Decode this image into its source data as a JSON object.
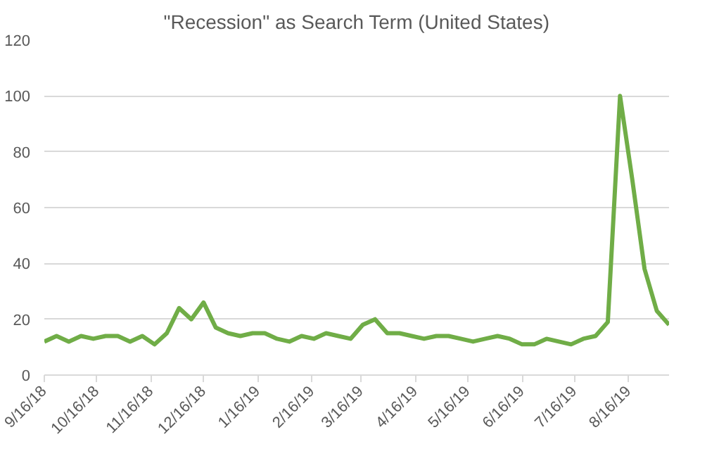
{
  "chart_data": {
    "type": "line",
    "title": "\"Recession\" as Search Term (United States)",
    "x": [
      "2018-09-16",
      "2018-09-23",
      "2018-09-30",
      "2018-10-07",
      "2018-10-14",
      "2018-10-21",
      "2018-10-28",
      "2018-11-04",
      "2018-11-11",
      "2018-11-18",
      "2018-11-25",
      "2018-12-02",
      "2018-12-09",
      "2018-12-16",
      "2018-12-23",
      "2018-12-30",
      "2019-01-06",
      "2019-01-13",
      "2019-01-20",
      "2019-01-27",
      "2019-02-03",
      "2019-02-10",
      "2019-02-17",
      "2019-02-24",
      "2019-03-03",
      "2019-03-10",
      "2019-03-17",
      "2019-03-24",
      "2019-03-31",
      "2019-04-07",
      "2019-04-14",
      "2019-04-21",
      "2019-04-28",
      "2019-05-05",
      "2019-05-12",
      "2019-05-19",
      "2019-05-26",
      "2019-06-02",
      "2019-06-09",
      "2019-06-16",
      "2019-06-23",
      "2019-06-30",
      "2019-07-07",
      "2019-07-14",
      "2019-07-21",
      "2019-07-28",
      "2019-08-04",
      "2019-08-11",
      "2019-08-18",
      "2019-08-25",
      "2019-09-01",
      "2019-09-08"
    ],
    "series": [
      {
        "color": "#70ad47",
        "values": [
          12,
          14,
          12,
          14,
          13,
          14,
          14,
          12,
          14,
          11,
          15,
          24,
          20,
          26,
          17,
          15,
          14,
          15,
          15,
          13,
          12,
          14,
          13,
          15,
          14,
          13,
          18,
          20,
          15,
          15,
          14,
          13,
          14,
          14,
          13,
          12,
          13,
          14,
          13,
          11,
          11,
          13,
          12,
          11,
          13,
          14,
          19,
          100,
          70,
          38,
          23,
          18
        ]
      }
    ],
    "xlim": [
      "2018-09-16",
      "2019-09-08"
    ],
    "xticks": [
      {
        "value": "2018-09-16",
        "label": "9/16/18"
      },
      {
        "value": "2018-10-16",
        "label": "10/16/18"
      },
      {
        "value": "2018-11-16",
        "label": "11/16/18"
      },
      {
        "value": "2018-12-16",
        "label": "12/16/18"
      },
      {
        "value": "2019-01-16",
        "label": "1/16/19"
      },
      {
        "value": "2019-02-16",
        "label": "2/16/19"
      },
      {
        "value": "2019-03-16",
        "label": "3/16/19"
      },
      {
        "value": "2019-04-16",
        "label": "4/16/19"
      },
      {
        "value": "2019-05-16",
        "label": "5/16/19"
      },
      {
        "value": "2019-06-16",
        "label": "6/16/19"
      },
      {
        "value": "2019-07-16",
        "label": "7/16/19"
      },
      {
        "value": "2019-08-16",
        "label": "8/16/19"
      }
    ],
    "ylim": [
      0,
      120
    ],
    "yticks": [
      0,
      20,
      40,
      60,
      80,
      100,
      120
    ],
    "grid": "y",
    "marker": "none",
    "line_style": "solid"
  }
}
